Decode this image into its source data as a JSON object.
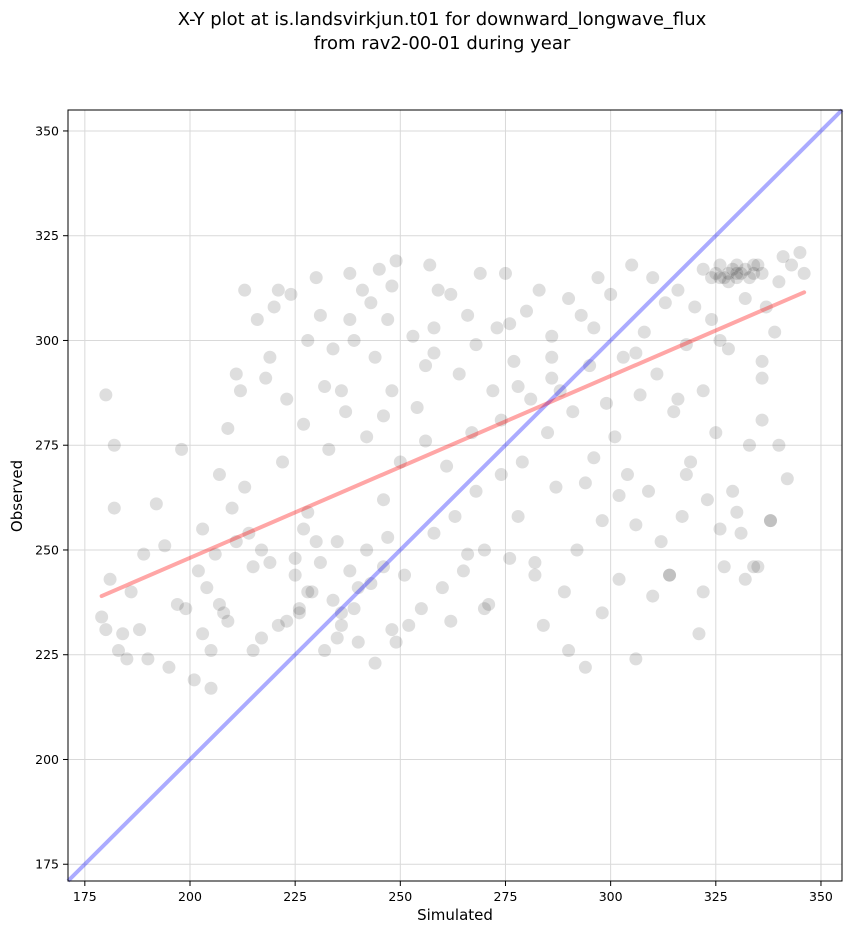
{
  "chart_data": {
    "type": "scatter",
    "title_line1": "X-Y plot at is.landsvirkjun.t01 for downward_longwave_flux",
    "title_line2": "from rav2-00-01 during year",
    "xlabel": "Simulated",
    "ylabel": "Observed",
    "xlim": [
      171,
      355
    ],
    "ylim": [
      171,
      355
    ],
    "xticks": [
      "175",
      "200",
      "225",
      "250",
      "275",
      "300",
      "325",
      "350"
    ],
    "yticks": [
      "175",
      "200",
      "225",
      "250",
      "275",
      "300",
      "325",
      "350"
    ],
    "grid": true,
    "colors": {
      "points": "#000000",
      "one_to_one": "#0000ff",
      "regression": "#ff0000",
      "grid": "#d9d9d9"
    },
    "one_to_one_line": {
      "x": [
        171,
        355
      ],
      "y": [
        171,
        355
      ]
    },
    "regression_line": {
      "x": [
        179,
        346
      ],
      "y": [
        239,
        311.5
      ]
    },
    "points": [
      [
        180,
        287
      ],
      [
        182,
        275
      ],
      [
        182,
        260
      ],
      [
        179,
        234
      ],
      [
        180,
        231
      ],
      [
        181,
        243
      ],
      [
        183,
        226
      ],
      [
        184,
        230
      ],
      [
        185,
        224
      ],
      [
        186,
        240
      ],
      [
        188,
        231
      ],
      [
        189,
        249
      ],
      [
        190,
        224
      ],
      [
        192,
        261
      ],
      [
        194,
        251
      ],
      [
        195,
        222
      ],
      [
        197,
        237
      ],
      [
        198,
        274
      ],
      [
        199,
        236
      ],
      [
        201,
        219
      ],
      [
        202,
        245
      ],
      [
        203,
        255
      ],
      [
        204,
        241
      ],
      [
        205,
        217
      ],
      [
        205,
        226
      ],
      [
        206,
        249
      ],
      [
        207,
        268
      ],
      [
        208,
        235
      ],
      [
        209,
        233
      ],
      [
        210,
        260
      ],
      [
        211,
        292
      ],
      [
        212,
        288
      ],
      [
        213,
        312
      ],
      [
        214,
        254
      ],
      [
        215,
        246
      ],
      [
        216,
        305
      ],
      [
        217,
        229
      ],
      [
        218,
        291
      ],
      [
        219,
        296
      ],
      [
        220,
        308
      ],
      [
        221,
        312
      ],
      [
        222,
        271
      ],
      [
        223,
        286
      ],
      [
        224,
        311
      ],
      [
        225,
        248
      ],
      [
        226,
        236
      ],
      [
        227,
        280
      ],
      [
        228,
        259
      ],
      [
        229,
        240
      ],
      [
        230,
        315
      ],
      [
        231,
        306
      ],
      [
        232,
        289
      ],
      [
        233,
        274
      ],
      [
        234,
        298
      ],
      [
        235,
        252
      ],
      [
        236,
        235
      ],
      [
        237,
        283
      ],
      [
        238,
        316
      ],
      [
        239,
        300
      ],
      [
        240,
        241
      ],
      [
        241,
        312
      ],
      [
        242,
        277
      ],
      [
        243,
        309
      ],
      [
        244,
        296
      ],
      [
        245,
        317
      ],
      [
        246,
        262
      ],
      [
        247,
        305
      ],
      [
        248,
        288
      ],
      [
        249,
        319
      ],
      [
        250,
        271
      ],
      [
        251,
        244
      ],
      [
        252,
        232
      ],
      [
        253,
        301
      ],
      [
        254,
        284
      ],
      [
        255,
        236
      ],
      [
        256,
        276
      ],
      [
        257,
        318
      ],
      [
        258,
        297
      ],
      [
        259,
        312
      ],
      [
        260,
        241
      ],
      [
        261,
        270
      ],
      [
        262,
        311
      ],
      [
        263,
        258
      ],
      [
        264,
        292
      ],
      [
        265,
        245
      ],
      [
        266,
        306
      ],
      [
        267,
        278
      ],
      [
        268,
        264
      ],
      [
        269,
        316
      ],
      [
        270,
        250
      ],
      [
        271,
        237
      ],
      [
        272,
        288
      ],
      [
        273,
        303
      ],
      [
        274,
        281
      ],
      [
        275,
        316
      ],
      [
        276,
        248
      ],
      [
        277,
        295
      ],
      [
        278,
        258
      ],
      [
        279,
        271
      ],
      [
        280,
        307
      ],
      [
        281,
        286
      ],
      [
        282,
        244
      ],
      [
        283,
        312
      ],
      [
        284,
        232
      ],
      [
        285,
        278
      ],
      [
        286,
        301
      ],
      [
        287,
        265
      ],
      [
        288,
        288
      ],
      [
        289,
        240
      ],
      [
        290,
        310
      ],
      [
        291,
        283
      ],
      [
        292,
        250
      ],
      [
        293,
        306
      ],
      [
        294,
        222
      ],
      [
        295,
        294
      ],
      [
        296,
        272
      ],
      [
        297,
        315
      ],
      [
        298,
        257
      ],
      [
        299,
        285
      ],
      [
        300,
        311
      ],
      [
        301,
        277
      ],
      [
        302,
        243
      ],
      [
        303,
        296
      ],
      [
        304,
        268
      ],
      [
        305,
        318
      ],
      [
        306,
        224
      ],
      [
        307,
        287
      ],
      [
        308,
        302
      ],
      [
        309,
        264
      ],
      [
        310,
        315
      ],
      [
        311,
        292
      ],
      [
        312,
        252
      ],
      [
        313,
        309
      ],
      [
        314,
        244
      ],
      [
        315,
        283
      ],
      [
        316,
        312
      ],
      [
        317,
        258
      ],
      [
        318,
        299
      ],
      [
        319,
        271
      ],
      [
        320,
        308
      ],
      [
        321,
        230
      ],
      [
        322,
        288
      ],
      [
        323,
        262
      ],
      [
        324,
        305
      ],
      [
        325,
        278
      ],
      [
        326,
        315
      ],
      [
        327,
        246
      ],
      [
        328,
        298
      ],
      [
        329,
        264
      ],
      [
        330,
        316
      ],
      [
        331,
        254
      ],
      [
        332,
        310
      ],
      [
        333,
        275
      ],
      [
        334,
        318
      ],
      [
        335,
        246
      ],
      [
        336,
        291
      ],
      [
        337,
        308
      ],
      [
        338,
        257
      ],
      [
        339,
        302
      ],
      [
        340,
        314
      ],
      [
        341,
        320
      ],
      [
        343,
        318
      ],
      [
        345,
        321
      ],
      [
        346,
        316
      ],
      [
        322,
        317
      ],
      [
        324,
        315
      ],
      [
        325,
        316
      ],
      [
        326,
        318
      ],
      [
        327,
        315
      ],
      [
        328,
        316
      ],
      [
        329,
        317
      ],
      [
        330,
        315
      ],
      [
        331,
        316
      ],
      [
        332,
        317
      ],
      [
        333,
        315
      ],
      [
        334,
        316
      ],
      [
        335,
        318
      ],
      [
        336,
        316
      ],
      [
        328,
        314
      ],
      [
        330,
        318
      ],
      [
        226,
        235
      ],
      [
        228,
        240
      ],
      [
        230,
        252
      ],
      [
        232,
        226
      ],
      [
        234,
        238
      ],
      [
        236,
        232
      ],
      [
        238,
        245
      ],
      [
        240,
        228
      ],
      [
        242,
        250
      ],
      [
        244,
        223
      ],
      [
        246,
        246
      ],
      [
        248,
        231
      ],
      [
        249,
        228
      ],
      [
        247,
        253
      ],
      [
        243,
        242
      ],
      [
        239,
        236
      ],
      [
        235,
        229
      ],
      [
        231,
        247
      ],
      [
        227,
        255
      ],
      [
        223,
        233
      ],
      [
        219,
        247
      ],
      [
        215,
        226
      ],
      [
        211,
        252
      ],
      [
        207,
        237
      ],
      [
        203,
        230
      ],
      [
        209,
        279
      ],
      [
        213,
        265
      ],
      [
        217,
        250
      ],
      [
        221,
        232
      ],
      [
        225,
        244
      ],
      [
        258,
        254
      ],
      [
        262,
        233
      ],
      [
        266,
        249
      ],
      [
        270,
        236
      ],
      [
        274,
        268
      ],
      [
        278,
        289
      ],
      [
        282,
        247
      ],
      [
        286,
        291
      ],
      [
        290,
        226
      ],
      [
        294,
        266
      ],
      [
        298,
        235
      ],
      [
        302,
        263
      ],
      [
        306,
        256
      ],
      [
        310,
        239
      ],
      [
        314,
        244
      ],
      [
        318,
        268
      ],
      [
        322,
        240
      ],
      [
        326,
        255
      ],
      [
        330,
        259
      ],
      [
        334,
        246
      ],
      [
        338,
        257
      ],
      [
        340,
        275
      ],
      [
        342,
        267
      ],
      [
        336,
        281
      ],
      [
        332,
        243
      ],
      [
        228,
        300
      ],
      [
        238,
        305
      ],
      [
        248,
        313
      ],
      [
        258,
        303
      ],
      [
        268,
        299
      ],
      [
        236,
        288
      ],
      [
        246,
        282
      ],
      [
        256,
        294
      ],
      [
        276,
        304
      ],
      [
        286,
        296
      ],
      [
        296,
        303
      ],
      [
        306,
        297
      ],
      [
        316,
        286
      ],
      [
        326,
        300
      ],
      [
        336,
        295
      ]
    ]
  }
}
